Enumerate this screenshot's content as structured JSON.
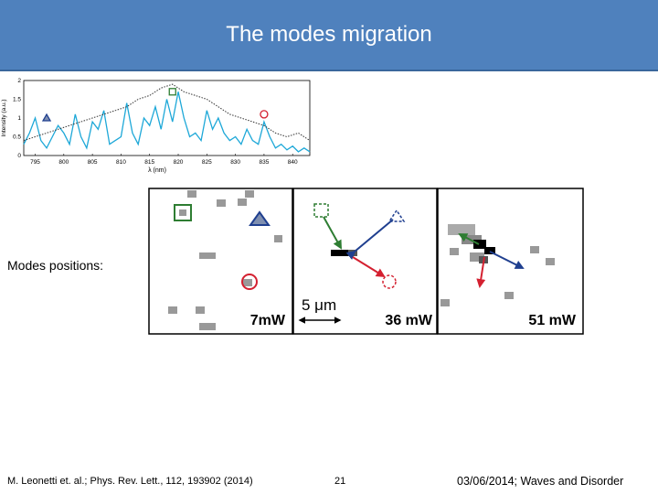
{
  "slide": {
    "title": "The modes migration",
    "modes_label": "Modes positions:",
    "footer_reference": "M. Leonetti et. al.; Phys. Rev. Lett., 112, 193902 (2014)",
    "page_number": "21",
    "footer_date": "03/06/2014; Waves and Disorder"
  },
  "colors": {
    "title_bar": "#4f81bd",
    "spectrum_line": "#1ea8d8",
    "green_marker": "#2e7d32",
    "blue_marker": "#1f3f8f",
    "red_marker": "#d42030",
    "gray_pixel": "#999999"
  },
  "panels": [
    {
      "label": "7mW"
    },
    {
      "label": "36 mW",
      "scale_label": "5 μm"
    },
    {
      "label": "51 mW"
    }
  ],
  "chart_data": {
    "type": "line",
    "ylabel": "Intensity (a.u.)",
    "xlabel": "λ (nm)",
    "xticks": [
      "795",
      "800",
      "805",
      "810",
      "815",
      "820",
      "825",
      "830",
      "835",
      "840"
    ],
    "yticks": [
      "0",
      "0.5",
      "1",
      "1.5",
      "2"
    ],
    "xlim": [
      793,
      843
    ],
    "ylim": [
      0,
      2
    ],
    "series": [
      {
        "style": "solid",
        "color": "#1ea8d8",
        "x": [
          793,
          794,
          795,
          796,
          797,
          798,
          799,
          800,
          801,
          802,
          803,
          804,
          805,
          806,
          807,
          808,
          809,
          810,
          811,
          812,
          813,
          814,
          815,
          816,
          817,
          818,
          819,
          820,
          821,
          822,
          823,
          824,
          825,
          826,
          827,
          828,
          829,
          830,
          831,
          832,
          833,
          834,
          835,
          836,
          837,
          838,
          839,
          840,
          841,
          842,
          843
        ],
        "y": [
          0.3,
          0.6,
          1.0,
          0.4,
          0.2,
          0.5,
          0.8,
          0.6,
          0.3,
          1.1,
          0.5,
          0.2,
          0.9,
          0.7,
          1.2,
          0.3,
          0.4,
          0.5,
          1.4,
          0.6,
          0.3,
          1.0,
          0.8,
          1.3,
          0.7,
          1.5,
          0.9,
          1.7,
          1.0,
          0.5,
          0.6,
          0.4,
          1.2,
          0.7,
          1.0,
          0.6,
          0.4,
          0.5,
          0.3,
          0.7,
          0.4,
          0.3,
          0.9,
          0.5,
          0.2,
          0.3,
          0.15,
          0.25,
          0.1,
          0.2,
          0.1
        ]
      },
      {
        "style": "dotted",
        "color": "#333333",
        "x": [
          793,
          795,
          797,
          799,
          801,
          803,
          805,
          807,
          809,
          811,
          813,
          815,
          817,
          819,
          821,
          823,
          825,
          827,
          829,
          831,
          833,
          835,
          837,
          839,
          841,
          843
        ],
        "y": [
          0.4,
          0.5,
          0.6,
          0.7,
          0.8,
          0.9,
          1.0,
          1.1,
          1.2,
          1.3,
          1.5,
          1.6,
          1.8,
          1.9,
          1.7,
          1.6,
          1.5,
          1.3,
          1.1,
          1.0,
          0.9,
          0.8,
          0.6,
          0.5,
          0.6,
          0.4
        ]
      }
    ],
    "markers": [
      {
        "shape": "triangle",
        "color": "#1f3f8f",
        "x": 797,
        "y": 1.0
      },
      {
        "shape": "square",
        "color": "#2e7d32",
        "x": 819,
        "y": 1.7
      },
      {
        "shape": "circle",
        "color": "#d42030",
        "x": 835,
        "y": 1.1
      }
    ]
  }
}
